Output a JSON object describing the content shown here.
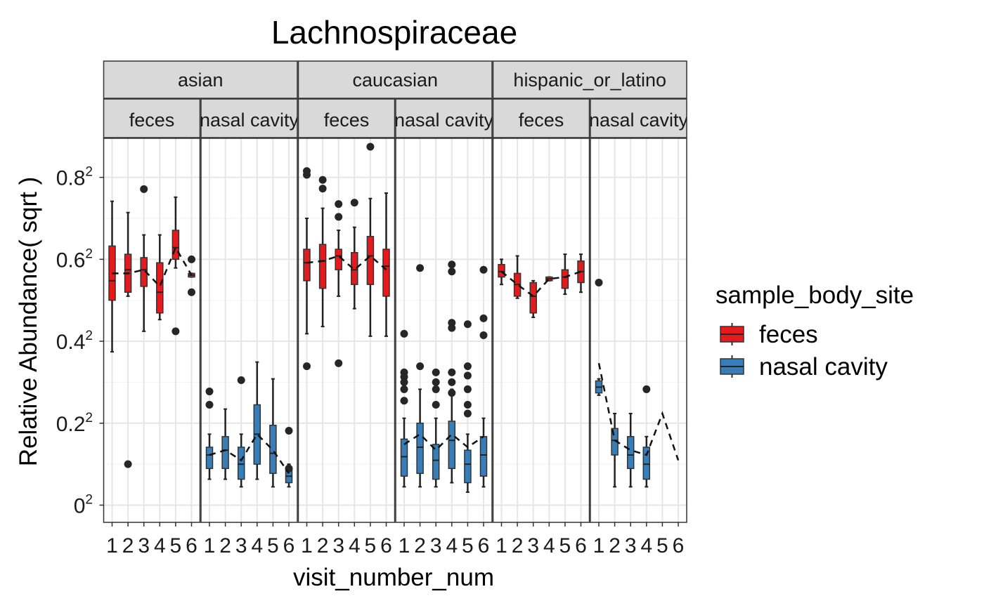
{
  "chart_data": {
    "type": "boxplot",
    "title": "Lachnospiraceae",
    "xlabel": "visit_number_num",
    "ylabel": "Relative Abundance( sqrt )",
    "y_scale": "sqrt",
    "ylim": [
      0,
      0.8
    ],
    "y_ticks": [
      {
        "value": 0,
        "base": "0",
        "exp": "2"
      },
      {
        "value": 0.2,
        "base": "0.2",
        "exp": "2"
      },
      {
        "value": 0.4,
        "base": "0.4",
        "exp": "2"
      },
      {
        "value": 0.6,
        "base": "0.6",
        "exp": "2"
      },
      {
        "value": 0.8,
        "base": "0.8",
        "exp": "2"
      }
    ],
    "x_ticks": [
      "1",
      "2",
      "3",
      "4",
      "5",
      "6"
    ],
    "grid": true,
    "legend": {
      "title": "sample_body_site",
      "position": "right",
      "entries": [
        {
          "name": "feces",
          "color": "#E41A1C"
        },
        {
          "name": "nasal cavity",
          "color": "#377EB8"
        }
      ]
    },
    "facet_rows_top": [
      "asian",
      "caucasian",
      "hispanic_or_latino"
    ],
    "facets": [
      {
        "ethnicity": "asian",
        "site": "feces",
        "label": "feces",
        "color": "#E41A1C",
        "boxes": [
          {
            "visit": 1,
            "q1": 0.25,
            "med": 0.3,
            "q3": 0.4,
            "lo": 0.14,
            "hi": 0.55,
            "out": []
          },
          {
            "visit": 2,
            "q1": 0.27,
            "med": 0.33,
            "q3": 0.375,
            "lo": 0.26,
            "hi": 0.51,
            "out": [
              0.01
            ]
          },
          {
            "visit": 3,
            "q1": 0.285,
            "med": 0.33,
            "q3": 0.365,
            "lo": 0.18,
            "hi": 0.435,
            "out": [
              0.595
            ]
          },
          {
            "visit": 4,
            "q1": 0.22,
            "med": 0.27,
            "q3": 0.35,
            "lo": 0.205,
            "hi": 0.435,
            "out": []
          },
          {
            "visit": 5,
            "q1": 0.36,
            "med": 0.395,
            "q3": 0.45,
            "lo": 0.335,
            "hi": 0.565,
            "out": [
              0.18
            ]
          },
          {
            "visit": 6,
            "q1": 0.31,
            "med": 0.315,
            "q3": 0.32,
            "lo": 0.31,
            "hi": 0.32,
            "out": [
              0.36,
              0.27
            ]
          }
        ],
        "median_line": [
          0.32,
          0.32,
          0.33,
          0.285,
          0.395,
          0.315
        ]
      },
      {
        "ethnicity": "asian",
        "site": "nasal cavity",
        "label": "nasal cavity",
        "color": "#377EB8",
        "boxes": [
          {
            "visit": 1,
            "q1": 0.008,
            "med": 0.015,
            "q3": 0.02,
            "lo": 0.004,
            "hi": 0.03,
            "out": [
              0.077,
              0.06
            ]
          },
          {
            "visit": 2,
            "q1": 0.008,
            "med": 0.018,
            "q3": 0.028,
            "lo": 0.004,
            "hi": 0.055,
            "out": []
          },
          {
            "visit": 3,
            "q1": 0.004,
            "med": 0.01,
            "q3": 0.02,
            "lo": 0.002,
            "hi": 0.03,
            "out": [
              0.093
            ]
          },
          {
            "visit": 4,
            "q1": 0.01,
            "med": 0.03,
            "q3": 0.06,
            "lo": 0.004,
            "hi": 0.122,
            "out": []
          },
          {
            "visit": 5,
            "q1": 0.006,
            "med": 0.016,
            "q3": 0.038,
            "lo": 0.002,
            "hi": 0.095,
            "out": []
          },
          {
            "visit": 6,
            "q1": 0.003,
            "med": 0.005,
            "q3": 0.008,
            "lo": 0.002,
            "hi": 0.01,
            "out": [
              0.033,
              0.008
            ]
          }
        ],
        "median_line": [
          0.015,
          0.018,
          0.012,
          0.03,
          0.018,
          0.006
        ]
      },
      {
        "ethnicity": "caucasian",
        "site": "feces",
        "label": "feces",
        "color": "#E41A1C",
        "boxes": [
          {
            "visit": 1,
            "q1": 0.3,
            "med": 0.35,
            "q3": 0.39,
            "lo": 0.175,
            "hi": 0.49,
            "out": [
              0.665,
              0.65,
              0.115
            ]
          },
          {
            "visit": 2,
            "q1": 0.28,
            "med": 0.355,
            "q3": 0.405,
            "lo": 0.19,
            "hi": 0.525,
            "out": [
              0.63,
              0.597
            ]
          },
          {
            "visit": 3,
            "q1": 0.33,
            "med": 0.37,
            "q3": 0.39,
            "lo": 0.26,
            "hi": 0.45,
            "out": [
              0.54,
              0.495,
              0.12
            ]
          },
          {
            "visit": 4,
            "q1": 0.29,
            "med": 0.33,
            "q3": 0.38,
            "lo": 0.23,
            "hi": 0.46,
            "out": [
              0.545
            ]
          },
          {
            "visit": 5,
            "q1": 0.29,
            "med": 0.37,
            "q3": 0.43,
            "lo": 0.17,
            "hi": 0.56,
            "out": [
              0.765
            ]
          },
          {
            "visit": 6,
            "q1": 0.26,
            "med": 0.34,
            "q3": 0.39,
            "lo": 0.17,
            "hi": 0.58,
            "out": []
          }
        ],
        "median_line": [
          0.35,
          0.355,
          0.37,
          0.33,
          0.37,
          0.33
        ]
      },
      {
        "ethnicity": "caucasian",
        "site": "nasal cavity",
        "label": "nasal cavity",
        "color": "#377EB8",
        "boxes": [
          {
            "visit": 1,
            "q1": 0.005,
            "med": 0.014,
            "q3": 0.026,
            "lo": 0.002,
            "hi": 0.045,
            "out": [
              0.175,
              0.105,
              0.098,
              0.09,
              0.08,
              0.065
            ]
          },
          {
            "visit": 2,
            "q1": 0.006,
            "med": 0.02,
            "q3": 0.04,
            "lo": 0.002,
            "hi": 0.08,
            "out": [
              0.335,
              0.115
            ]
          },
          {
            "visit": 3,
            "q1": 0.004,
            "med": 0.012,
            "q3": 0.022,
            "lo": 0.002,
            "hi": 0.045,
            "out": [
              0.105,
              0.09,
              0.08,
              0.06
            ]
          },
          {
            "visit": 4,
            "q1": 0.008,
            "med": 0.025,
            "q3": 0.042,
            "lo": 0.003,
            "hi": 0.08,
            "out": [
              0.345,
              0.325,
              0.198,
              0.187,
              0.105,
              0.09,
              0.075
            ]
          },
          {
            "visit": 5,
            "q1": 0.003,
            "med": 0.01,
            "q3": 0.018,
            "lo": 0.001,
            "hi": 0.03,
            "out": [
              0.195,
              0.115,
              0.1,
              0.08,
              0.06,
              0.05
            ]
          },
          {
            "visit": 6,
            "q1": 0.005,
            "med": 0.015,
            "q3": 0.028,
            "lo": 0.002,
            "hi": 0.045,
            "out": [
              0.33,
              0.208,
              0.172
            ]
          }
        ],
        "median_line": [
          0.022,
          0.03,
          0.018,
          0.03,
          0.02,
          0.028
        ]
      },
      {
        "ethnicity": "hispanic_or_latino",
        "site": "feces",
        "label": "feces",
        "color": "#E41A1C",
        "boxes": [
          {
            "visit": 1,
            "q1": 0.31,
            "med": 0.325,
            "q3": 0.345,
            "lo": 0.29,
            "hi": 0.36,
            "out": []
          },
          {
            "visit": 2,
            "q1": 0.26,
            "med": 0.29,
            "q3": 0.32,
            "lo": 0.255,
            "hi": 0.37,
            "out": []
          },
          {
            "visit": 3,
            "q1": 0.22,
            "med": 0.26,
            "q3": 0.295,
            "lo": 0.21,
            "hi": 0.3,
            "out": []
          },
          {
            "visit": 4,
            "q1": 0.3,
            "med": 0.305,
            "q3": 0.31,
            "lo": 0.3,
            "hi": 0.31,
            "out": []
          },
          {
            "visit": 5,
            "q1": 0.28,
            "med": 0.31,
            "q3": 0.33,
            "lo": 0.265,
            "hi": 0.375,
            "out": []
          },
          {
            "visit": 6,
            "q1": 0.295,
            "med": 0.325,
            "q3": 0.355,
            "lo": 0.27,
            "hi": 0.375,
            "out": []
          }
        ],
        "median_line": [
          0.325,
          0.29,
          0.26,
          0.305,
          0.31,
          0.325
        ]
      },
      {
        "ethnicity": "hispanic_or_latino",
        "site": "nasal cavity",
        "label": "nasal cavity",
        "color": "#377EB8",
        "boxes": [
          {
            "visit": 1,
            "q1": 0.075,
            "med": 0.083,
            "q3": 0.092,
            "lo": 0.072,
            "hi": 0.095,
            "out": [
              0.295
            ]
          },
          {
            "visit": 2,
            "q1": 0.015,
            "med": 0.025,
            "q3": 0.035,
            "lo": 0.002,
            "hi": 0.05,
            "out": []
          },
          {
            "visit": 3,
            "q1": 0.008,
            "med": 0.015,
            "q3": 0.028,
            "lo": 0.002,
            "hi": 0.05,
            "out": []
          },
          {
            "visit": 4,
            "q1": 0.004,
            "med": 0.01,
            "q3": 0.02,
            "lo": 0.002,
            "hi": 0.028,
            "out": [
              0.08
            ]
          }
        ],
        "median_line": [
          0.12,
          0.025,
          0.018,
          0.015,
          0.05,
          0.012
        ]
      }
    ]
  }
}
